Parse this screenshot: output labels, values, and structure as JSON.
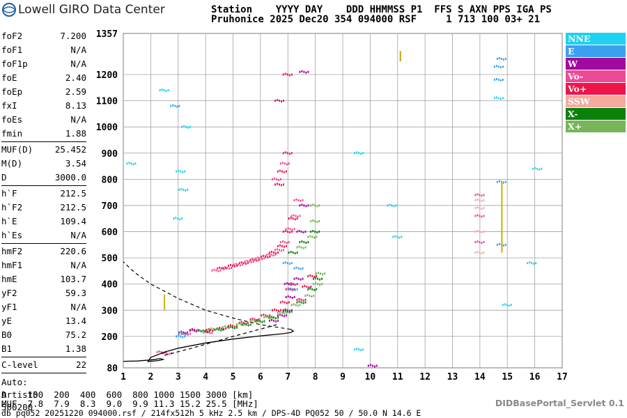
{
  "header": {
    "logo_text": "Lowell GIRO Data Center",
    "line1": "Station    YYYY DAY    DDD HHMMSS P1  FFS S AXN PPS IGA PS",
    "line2": "Pruhonice 2025 Dec20 354 094000 RSF     1 713 100 03+ 21"
  },
  "params": {
    "group1": [
      {
        "label": "foF2",
        "value": "7.200"
      },
      {
        "label": "foF1",
        "value": "N/A"
      },
      {
        "label": "foF1p",
        "value": "N/A"
      },
      {
        "label": "foE",
        "value": "2.40"
      },
      {
        "label": "foEp",
        "value": "2.59"
      },
      {
        "label": "fxI",
        "value": "8.13"
      },
      {
        "label": "foEs",
        "value": "N/A"
      },
      {
        "label": "fmin",
        "value": "1.88"
      }
    ],
    "group2": [
      {
        "label": "MUF(D)",
        "value": "25.452"
      },
      {
        "label": "M(D)",
        "value": "3.54"
      },
      {
        "label": "D",
        "value": "3000.0"
      }
    ],
    "group3": [
      {
        "label": "h`F",
        "value": "212.5"
      },
      {
        "label": "h`F2",
        "value": "212.5"
      },
      {
        "label": "h`E",
        "value": "109.4"
      },
      {
        "label": "h`Es",
        "value": "N/A"
      }
    ],
    "group4": [
      {
        "label": "hmF2",
        "value": "220.6"
      },
      {
        "label": "hmF1",
        "value": "N/A"
      },
      {
        "label": "hmE",
        "value": "103.7"
      },
      {
        "label": "yF2",
        "value": "59.3"
      },
      {
        "label": "yF1",
        "value": "N/A"
      },
      {
        "label": "yE",
        "value": "13.4"
      },
      {
        "label": "B0",
        "value": "75.2"
      },
      {
        "label": "B1",
        "value": "1.38"
      }
    ],
    "group5": [
      {
        "label": "C-level",
        "value": "22"
      }
    ],
    "auto_lines": [
      "Auto:",
      "Artist5",
      "500200"
    ]
  },
  "legend": [
    {
      "label": "NNE",
      "color": "#1ed2f0"
    },
    {
      "label": "E",
      "color": "#3ca0f0"
    },
    {
      "label": "W",
      "color": "#a00aa0"
    },
    {
      "label": "Vo-",
      "color": "#eb4b96"
    },
    {
      "label": "Vo+",
      "color": "#f0144b"
    },
    {
      "label": "SSW",
      "color": "#f5aaa0"
    },
    {
      "label": "X-",
      "color": "#0a820a"
    },
    {
      "label": "X+",
      "color": "#78b45a"
    }
  ],
  "footer": {
    "d_line": "D    100  200  400  600  800 1000 1500 3000 [km]",
    "muf_line": "MUF  7.8  7.9  8.3  9.0  9.9 11.3 15.2 25.5 [MHz]",
    "file_line": "db pq052 20251220 094000.rsf / 214fx512h 5 kHz 2.5 km / DPS-4D PQ052 50 / 50.0 N 14.6 E",
    "servlet": "DIDBasePortal_Servlet 0.1"
  },
  "chart_data": {
    "type": "scatter",
    "title": "",
    "xlabel": "",
    "ylabel": "",
    "xlim": [
      1,
      17
    ],
    "ylim": [
      80,
      1357
    ],
    "x_ticks": [
      "1",
      "2",
      "3",
      "4",
      "5",
      "6",
      "7",
      "8",
      "9",
      "10",
      "11",
      "12",
      "13",
      "14",
      "15",
      "16",
      "17"
    ],
    "y_ticks": [
      "80",
      "200",
      "300",
      "400",
      "500",
      "600",
      "700",
      "800",
      "900",
      "1000",
      "1100",
      "1200",
      "1357"
    ],
    "grid": true,
    "series": [
      {
        "name": "Vo+",
        "color": "#f0144b",
        "points": [
          [
            4.6,
            460
          ],
          [
            5.0,
            470
          ],
          [
            5.4,
            480
          ],
          [
            5.8,
            492
          ],
          [
            6.2,
            505
          ],
          [
            6.5,
            520
          ],
          [
            6.8,
            545
          ],
          [
            7.0,
            600
          ],
          [
            7.2,
            650
          ],
          [
            3.6,
            225
          ],
          [
            4.2,
            225
          ],
          [
            4.6,
            230
          ],
          [
            5.0,
            240
          ],
          [
            5.4,
            252
          ],
          [
            5.8,
            265
          ],
          [
            6.2,
            280
          ],
          [
            6.6,
            300
          ],
          [
            6.9,
            330
          ],
          [
            7.1,
            380
          ],
          [
            7.2,
            400
          ],
          [
            6.7,
            780
          ],
          [
            6.8,
            830
          ],
          [
            7.0,
            900
          ],
          [
            6.7,
            1100
          ],
          [
            7.0,
            1200
          ],
          [
            7.5,
            340
          ],
          [
            7.7,
            390
          ],
          [
            7.9,
            430
          ]
        ]
      },
      {
        "name": "Vo-",
        "color": "#eb4b96",
        "points": [
          [
            4.4,
            452
          ],
          [
            4.8,
            462
          ],
          [
            5.2,
            474
          ],
          [
            5.6,
            486
          ],
          [
            6.0,
            498
          ],
          [
            6.4,
            512
          ],
          [
            6.7,
            530
          ],
          [
            6.9,
            560
          ],
          [
            7.1,
            610
          ],
          [
            7.3,
            660
          ],
          [
            7.4,
            720
          ],
          [
            6.6,
            800
          ],
          [
            6.9,
            860
          ],
          [
            2.4,
            140
          ],
          [
            2.6,
            135
          ],
          [
            3.3,
            210
          ],
          [
            4.1,
            215
          ],
          [
            14.0,
            560
          ],
          [
            14.0,
            660
          ],
          [
            14.0,
            740
          ]
        ]
      },
      {
        "name": "W",
        "color": "#a00aa0",
        "points": [
          [
            3.2,
            215
          ],
          [
            3.6,
            222
          ],
          [
            6.5,
            260
          ],
          [
            6.8,
            280
          ],
          [
            7.0,
            300
          ],
          [
            7.05,
            400
          ],
          [
            7.1,
            350
          ],
          [
            7.4,
            420
          ],
          [
            7.6,
            1210
          ],
          [
            7.6,
            700
          ],
          [
            7.5,
            600
          ],
          [
            10.1,
            88
          ]
        ]
      },
      {
        "name": "X-",
        "color": "#0a820a",
        "points": [
          [
            4.0,
            220
          ],
          [
            4.5,
            226
          ],
          [
            5.0,
            234
          ],
          [
            5.5,
            245
          ],
          [
            6.0,
            258
          ],
          [
            6.5,
            272
          ],
          [
            7.0,
            295
          ],
          [
            7.5,
            330
          ],
          [
            7.9,
            380
          ],
          [
            8.1,
            420
          ],
          [
            7.2,
            520
          ],
          [
            7.6,
            560
          ],
          [
            8.0,
            600
          ]
        ]
      },
      {
        "name": "X+",
        "color": "#78b45a",
        "points": [
          [
            3.8,
            222
          ],
          [
            4.3,
            228
          ],
          [
            4.8,
            236
          ],
          [
            5.3,
            246
          ],
          [
            5.8,
            258
          ],
          [
            6.3,
            272
          ],
          [
            6.8,
            290
          ],
          [
            7.3,
            320
          ],
          [
            7.8,
            355
          ],
          [
            8.1,
            400
          ],
          [
            8.2,
            440
          ],
          [
            7.5,
            540
          ],
          [
            7.9,
            580
          ],
          [
            8.0,
            640
          ],
          [
            8.0,
            700
          ]
        ]
      },
      {
        "name": "E",
        "color": "#3ca0f0",
        "points": [
          [
            3.1,
            200
          ],
          [
            3.2,
            210
          ],
          [
            7.2,
            380
          ],
          [
            7.0,
            480
          ],
          [
            7.4,
            460
          ],
          [
            14.7,
            1180
          ],
          [
            14.7,
            1230
          ],
          [
            14.8,
            1260
          ],
          [
            14.8,
            790
          ],
          [
            14.8,
            550
          ],
          [
            2.9,
            1080
          ]
        ]
      },
      {
        "name": "NNE",
        "color": "#1ed2f0",
        "points": [
          [
            1.3,
            860
          ],
          [
            2.5,
            1140
          ],
          [
            3.1,
            830
          ],
          [
            3.2,
            760
          ],
          [
            3.0,
            650
          ],
          [
            3.3,
            1000
          ],
          [
            9.6,
            150
          ],
          [
            9.6,
            900
          ],
          [
            10.8,
            700
          ],
          [
            14.7,
            1110
          ],
          [
            15.0,
            320
          ],
          [
            15.9,
            480
          ],
          [
            16.1,
            840
          ],
          [
            11.0,
            580
          ]
        ]
      },
      {
        "name": "SSW",
        "color": "#f5aaa0",
        "points": [
          [
            14.0,
            520
          ],
          [
            14.0,
            600
          ],
          [
            14.0,
            690
          ],
          [
            14.0,
            720
          ]
        ]
      }
    ],
    "profile": {
      "name": "electron density profile",
      "points": [
        [
          1.0,
          105
        ],
        [
          1.5,
          106
        ],
        [
          2.0,
          110
        ],
        [
          2.35,
          115
        ],
        [
          2.45,
          112
        ],
        [
          2.3,
          108
        ],
        [
          1.9,
          104
        ],
        [
          2.0,
          120
        ],
        [
          2.5,
          140
        ],
        [
          3.0,
          155
        ],
        [
          4.0,
          175
        ],
        [
          5.0,
          190
        ],
        [
          6.0,
          202
        ],
        [
          6.8,
          210
        ],
        [
          7.1,
          215
        ],
        [
          7.2,
          220
        ],
        [
          7.1,
          227
        ]
      ]
    },
    "profile_dashed": {
      "name": "topside extrapolation",
      "points": [
        [
          7.1,
          227
        ],
        [
          6.0,
          245
        ],
        [
          5.0,
          270
        ],
        [
          4.0,
          300
        ],
        [
          3.0,
          345
        ],
        [
          2.0,
          400
        ],
        [
          1.4,
          445
        ],
        [
          1.0,
          485
        ]
      ]
    },
    "profile_lower_dashed": {
      "name": "lower extrapolation",
      "points": [
        [
          2.5,
          128
        ],
        [
          3.5,
          155
        ],
        [
          5.0,
          200
        ],
        [
          6.6,
          245
        ]
      ]
    },
    "gyro_strips": [
      {
        "x": 11.1,
        "y0": 1250,
        "y1": 1290,
        "color": "#c8a000"
      },
      {
        "x": 14.8,
        "y0": 520,
        "y1": 790,
        "color": "#c8b400"
      },
      {
        "x": 2.5,
        "y0": 300,
        "y1": 360,
        "color": "#c8b400"
      }
    ]
  }
}
